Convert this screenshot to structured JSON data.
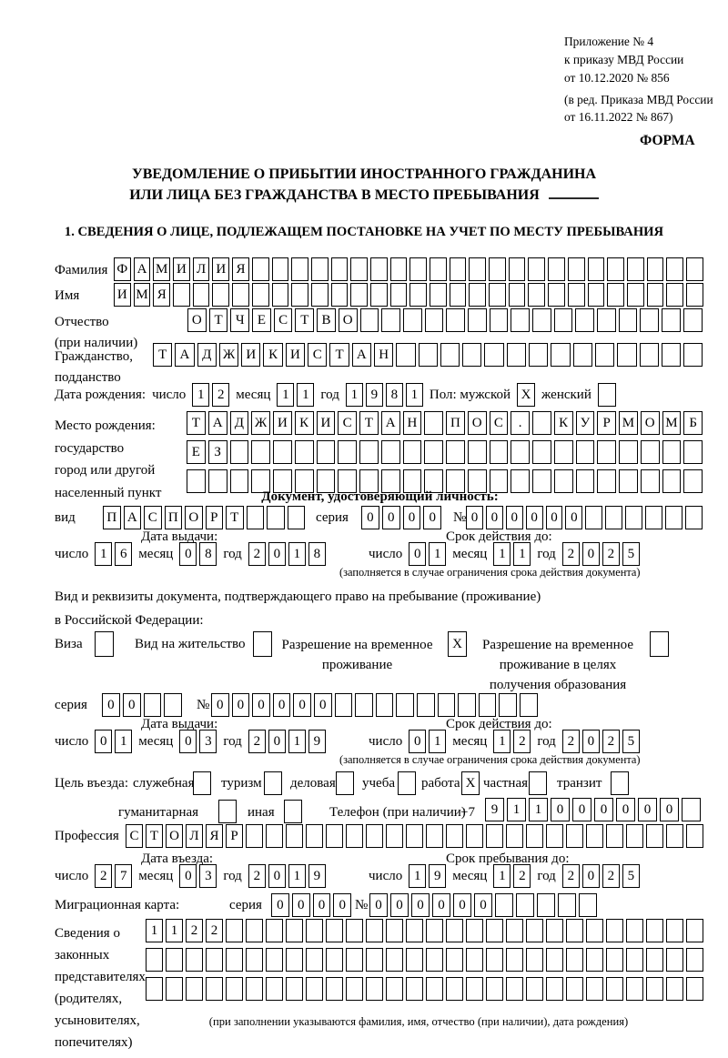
{
  "header": {
    "appendix_lines": [
      "Приложение № 4",
      "к приказу МВД России",
      "от 10.12.2020 № 856"
    ],
    "revision_lines": [
      "(в ред. Приказа МВД России",
      "от 16.11.2022 № 867)"
    ],
    "form_label": "ФОРМА"
  },
  "title": {
    "line1": "УВЕДОМЛЕНИЕ О ПРИБЫТИИ ИНОСТРАННОГО ГРАЖДАНИНА",
    "line2": "ИЛИ ЛИЦА БЕЗ ГРАЖДАНСТВА В МЕСТО ПРЕБЫВАНИЯ"
  },
  "section1_heading": "1. СВЕДЕНИЯ О ЛИЦЕ, ПОДЛЕЖАЩЕМ ПОСТАНОВКЕ НА УЧЕТ ПО МЕСТУ ПРЕБЫВАНИЯ",
  "labels": {
    "day": "число",
    "month": "месяц",
    "year": "год",
    "series": "серия",
    "number": "№",
    "issue_date": "Дата выдачи:",
    "valid_until": "Срок действия до:",
    "entry_date": "Дата въезда:",
    "stay_until": "Срок пребывания до:",
    "validity_note": "(заполняется в случае ограничения срока действия документа)"
  },
  "person": {
    "surname_label": "Фамилия",
    "surname_cells": {
      "text": "ФАМИЛИЯ",
      "len": 30
    },
    "name_label": "Имя",
    "name_cells": {
      "text": "ИМЯ",
      "len": 30
    },
    "patronymic_label_lines": [
      "Отчество",
      "(при наличии)"
    ],
    "patronymic_cells": {
      "text": "ОТЧЕСТВО",
      "len": 24
    },
    "citizenship_label_lines": [
      "Гражданство,",
      "подданство"
    ],
    "citizenship_cells": {
      "text": "ТАДЖИКИСТАН",
      "len": 25
    },
    "birth_date_label": "Дата рождения:",
    "birth_day": "12",
    "birth_month": "11",
    "birth_year": "1981",
    "sex_male_label": "Пол: мужской",
    "sex_male": "X",
    "sex_female_label": "женский",
    "sex_female": " ",
    "birth_place_label_lines": [
      "Место рождения:",
      "государство",
      "город или другой",
      "населенный пункт"
    ],
    "birth_place_row1": {
      "text": "ТАДЖИКИСТАН ПОС. КУРМОМБ",
      "len": 24
    },
    "birth_place_row2": {
      "text": "ЕЗ",
      "len": 24
    },
    "birth_place_row3": {
      "text": "",
      "len": 24
    }
  },
  "identity_doc": {
    "heading": "Документ, удостоверяющий личность:",
    "kind_label": "вид",
    "kind_cells": {
      "text": "ПАСПОРТ",
      "len": 10
    },
    "series_cells": {
      "text": "0000",
      "len": 4
    },
    "number_cells": {
      "text": "000000",
      "len": 12
    },
    "issue_day": "16",
    "issue_month": "08",
    "issue_year": "2018",
    "valid_day": "01",
    "valid_month": "11",
    "valid_year": "2025"
  },
  "residence_doc": {
    "heading_line1": "Вид и реквизиты документа, подтверждающего право на пребывание (проживание)",
    "heading_line2": "в Российской Федерации:",
    "visa_label": "Виза",
    "visa_checked": " ",
    "permit_label": "Вид на жительство",
    "permit_checked": " ",
    "temp_permit_lines": [
      "Разрешение на временное",
      "проживание"
    ],
    "temp_permit_checked": "X",
    "edu_permit_lines": [
      "Разрешение на временное",
      "проживание в целях",
      "получения образования"
    ],
    "edu_permit_checked": " ",
    "series_cells": {
      "text": "00",
      "len": 4
    },
    "number_cells": {
      "text": "000000",
      "len": 16
    },
    "issue_day": "01",
    "issue_month": "03",
    "issue_year": "2019",
    "valid_day": "01",
    "valid_month": "12",
    "valid_year": "2025"
  },
  "visit": {
    "purpose_label": "Цель въезда:",
    "purpose_options": [
      {
        "label": "служебная",
        "checked": " "
      },
      {
        "label": "туризм",
        "checked": " "
      },
      {
        "label": "деловая",
        "checked": " "
      },
      {
        "label": "учеба",
        "checked": " "
      },
      {
        "label": "работа",
        "checked": "X"
      },
      {
        "label": "частная",
        "checked": " "
      },
      {
        "label": "транзит",
        "checked": " "
      },
      {
        "label": "гуманитарная",
        "checked": " "
      },
      {
        "label": "иная",
        "checked": " "
      }
    ],
    "phone_label": "Телефон (при наличии)",
    "phone_prefix": "+7",
    "phone_cells": {
      "text": "911000000",
      "len": 10
    },
    "profession_label": "Профессия",
    "profession_cells": {
      "text": "СТОЛЯР",
      "len": 29
    },
    "entry_day": "27",
    "entry_month": "03",
    "entry_year": "2019",
    "stay_day": "19",
    "stay_month": "12",
    "stay_year": "2025",
    "migration_card_label": "Миграционная карта:",
    "migration_series_cells": {
      "text": "0000",
      "len": 4
    },
    "migration_number_cells": {
      "text": "000000",
      "len": 11
    }
  },
  "representatives": {
    "label_lines": [
      "Сведения о",
      "законных",
      "представителях",
      "(родителях,",
      "усыновителях,",
      "попечителях)"
    ],
    "row1": {
      "text": "1122",
      "len": 28
    },
    "row2": {
      "text": "",
      "len": 28
    },
    "row3": {
      "text": "",
      "len": 28
    },
    "note": "(при заполнении указываются фамилия, имя, отчество (при наличии), дата рождения)"
  }
}
